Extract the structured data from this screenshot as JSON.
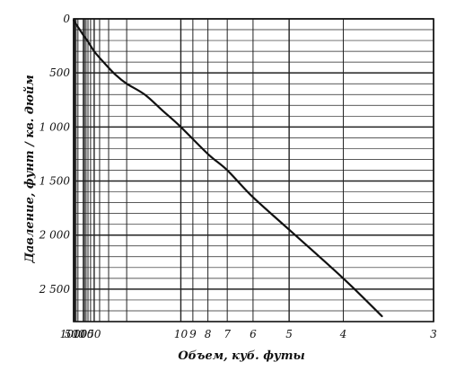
{
  "chart_data": {
    "type": "line",
    "title": "",
    "xlabel": "Объем, куб. футы",
    "ylabel": "Давление, фунт / кв. дюйм",
    "x_scale": "reciprocal",
    "x_direction": "decreasing to the right",
    "y_direction": "increasing downward",
    "xlim": [
      1000,
      3
    ],
    "ylim": [
      0,
      2800
    ],
    "grid": true,
    "x_grid_values": [
      1000,
      900,
      800,
      700,
      600,
      500,
      400,
      300,
      200,
      100,
      90,
      80,
      70,
      60,
      50,
      40,
      30,
      20,
      10,
      9,
      8,
      7,
      6,
      5,
      4,
      3
    ],
    "x_tick_labels": [
      {
        "value": 1000,
        "label": "1000"
      },
      {
        "value": 500,
        "label": "500"
      },
      {
        "value": 100,
        "label": "100"
      },
      {
        "value": 50,
        "label": "50"
      },
      {
        "value": 10,
        "label": "10"
      },
      {
        "value": 9,
        "label": "9"
      },
      {
        "value": 8,
        "label": "8"
      },
      {
        "value": 7,
        "label": "7"
      },
      {
        "value": 6,
        "label": "6"
      },
      {
        "value": 5,
        "label": "5"
      },
      {
        "value": 4,
        "label": "4"
      },
      {
        "value": 3,
        "label": "3"
      }
    ],
    "y_tick_labels": [
      {
        "value": 0,
        "label": "0"
      },
      {
        "value": 500,
        "label": "500"
      },
      {
        "value": 1000,
        "label": "1 000"
      },
      {
        "value": 1500,
        "label": "1 500"
      },
      {
        "value": 2000,
        "label": "2 000"
      },
      {
        "value": 2500,
        "label": "2 500"
      }
    ],
    "series": [
      {
        "x": [
          900,
          500,
          300,
          200,
          100,
          70,
          50,
          35,
          25,
          20,
          15,
          12,
          10,
          8,
          7,
          6,
          5,
          4,
          3.5
        ],
        "y": [
          15,
          30,
          50,
          75,
          150,
          210,
          300,
          400,
          520,
          600,
          700,
          850,
          1000,
          1250,
          1400,
          1650,
          1950,
          2400,
          2750
        ]
      }
    ],
    "colors": {
      "line": "#111111",
      "grid": "#222222",
      "background": "#ffffff"
    }
  }
}
